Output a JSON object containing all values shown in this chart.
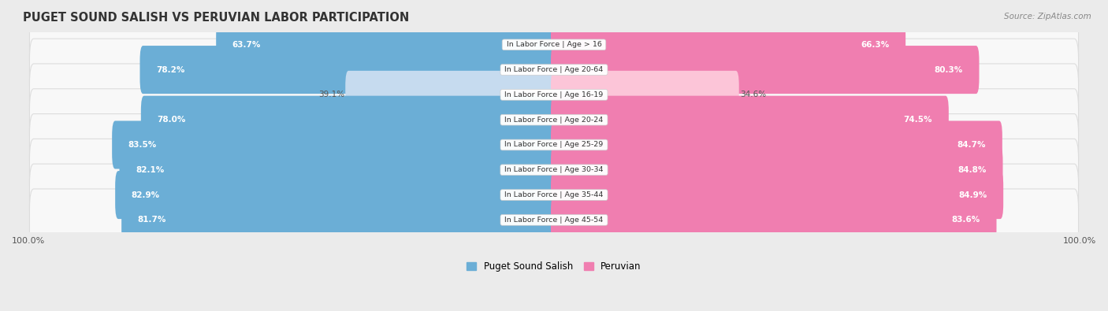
{
  "title": "PUGET SOUND SALISH VS PERUVIAN LABOR PARTICIPATION",
  "source": "Source: ZipAtlas.com",
  "categories": [
    "In Labor Force | Age > 16",
    "In Labor Force | Age 20-64",
    "In Labor Force | Age 16-19",
    "In Labor Force | Age 20-24",
    "In Labor Force | Age 25-29",
    "In Labor Force | Age 30-34",
    "In Labor Force | Age 35-44",
    "In Labor Force | Age 45-54"
  ],
  "puget_values": [
    63.7,
    78.2,
    39.1,
    78.0,
    83.5,
    82.1,
    82.9,
    81.7
  ],
  "peruvian_values": [
    66.3,
    80.3,
    34.6,
    74.5,
    84.7,
    84.8,
    84.9,
    83.6
  ],
  "puget_color": "#6baed6",
  "puget_color_light": "#c6dbef",
  "peruvian_color": "#f07eb0",
  "peruvian_color_light": "#fcc5d8",
  "bg_color": "#ebebeb",
  "row_bg": "#f8f8f8",
  "row_border": "#dddddd",
  "max_value": 100.0,
  "bar_height": 0.72,
  "legend_puget": "Puget Sound Salish",
  "legend_peruvian": "Peruvian",
  "label_fontsize": 7.5,
  "cat_fontsize": 6.8,
  "title_fontsize": 10.5
}
